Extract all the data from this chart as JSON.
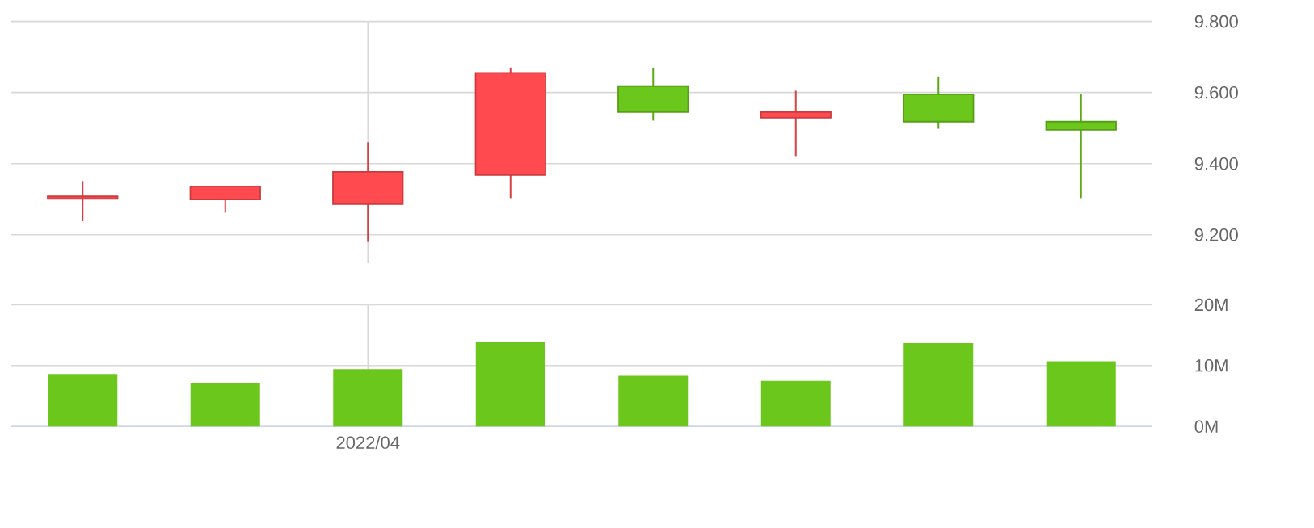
{
  "chart_data": [
    {
      "type": "candlestick",
      "categories": [
        null,
        null,
        null,
        null,
        null,
        null,
        null,
        null
      ],
      "ohlc": [
        [
          9.301,
          9.351,
          9.238,
          9.308
        ],
        [
          9.299,
          9.336,
          9.262,
          9.336
        ],
        [
          9.286,
          9.46,
          9.18,
          9.377
        ],
        [
          9.368,
          9.67,
          9.303,
          9.655
        ],
        [
          9.618,
          9.67,
          9.521,
          9.545
        ],
        [
          9.529,
          9.605,
          9.421,
          9.545
        ],
        [
          9.595,
          9.645,
          9.498,
          9.518
        ],
        [
          9.518,
          9.595,
          9.303,
          9.495
        ]
      ],
      "colors": [
        "#ff4a4f",
        "#ff4a4f",
        "#ff4a4f",
        "#ff4a4f",
        "#6cc71c",
        "#ff4a4f",
        "#6cc71c",
        "#6cc71c"
      ],
      "ylim": [
        9.12,
        9.8
      ],
      "yticks": [
        {
          "value": 9.2,
          "label": "9.200"
        },
        {
          "value": 9.4,
          "label": "9.400"
        },
        {
          "value": 9.6,
          "label": "9.600"
        },
        {
          "value": 9.8,
          "label": "9.800"
        }
      ],
      "grid": true,
      "tick_labels": "y"
    },
    {
      "type": "bar",
      "categories": [
        null,
        null,
        "2022/04",
        null,
        null,
        null,
        null,
        null
      ],
      "values": [
        8.6,
        7.2,
        9.4,
        13.9,
        8.3,
        7.5,
        13.7,
        10.7
      ],
      "color": "#6cc71c",
      "ylim": [
        0,
        20
      ],
      "yticks": [
        {
          "value": 0,
          "label": "0M"
        },
        {
          "value": 10,
          "label": "10M"
        },
        {
          "value": 20,
          "label": "20M"
        }
      ],
      "grid": true
    }
  ]
}
